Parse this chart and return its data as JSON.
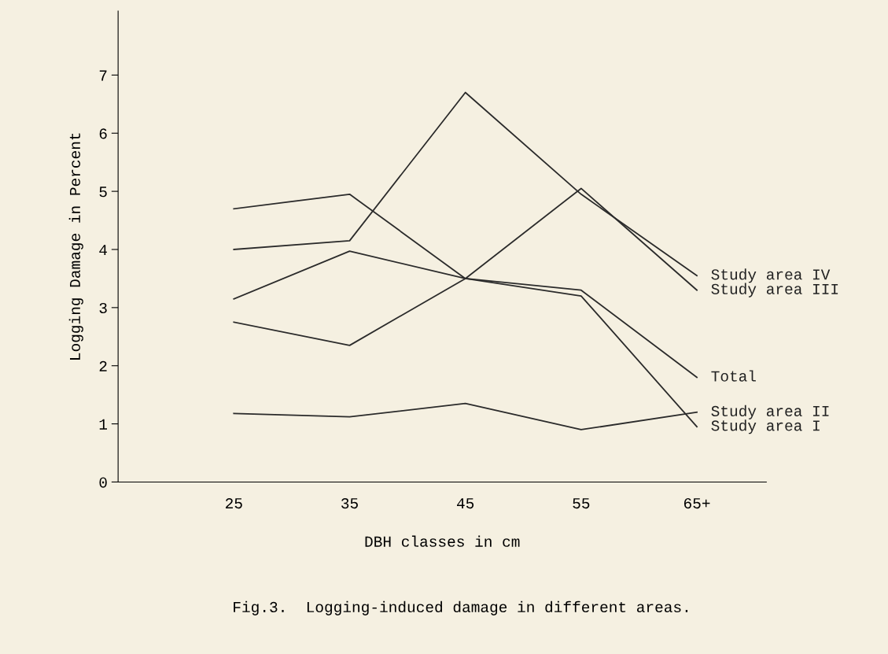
{
  "chart_data": {
    "type": "line",
    "xlabel": "DBH classes in cm",
    "ylabel": "Logging Damage in Percent",
    "categories": [
      "25",
      "35",
      "45",
      "55",
      "65+"
    ],
    "series": [
      {
        "name": "Study area I",
        "color": "#2b2b2b",
        "values": [
          4.7,
          4.95,
          3.5,
          3.2,
          0.95
        ]
      },
      {
        "name": "Study area IV",
        "color": "#2b2b2b",
        "values": [
          4.0,
          4.15,
          6.7,
          4.95,
          3.55
        ]
      },
      {
        "name": "Total",
        "color": "#2b2b2b",
        "values": [
          3.15,
          3.97,
          3.5,
          3.3,
          1.8
        ]
      },
      {
        "name": "Study area III",
        "color": "#2b2b2b",
        "values": [
          2.75,
          2.35,
          3.5,
          5.05,
          3.3
        ]
      },
      {
        "name": "Study area II",
        "color": "#2b2b2b",
        "values": [
          1.18,
          1.12,
          1.35,
          0.9,
          1.2
        ]
      }
    ],
    "ylim": [
      0,
      8.1
    ],
    "yticks": [
      0,
      1,
      2,
      3,
      4,
      5,
      6,
      7
    ],
    "grid": false,
    "legend": false,
    "marker": "none",
    "line_style": "solid",
    "annotations": [
      "Fig.3.  Logging-induced damage in different areas."
    ]
  }
}
